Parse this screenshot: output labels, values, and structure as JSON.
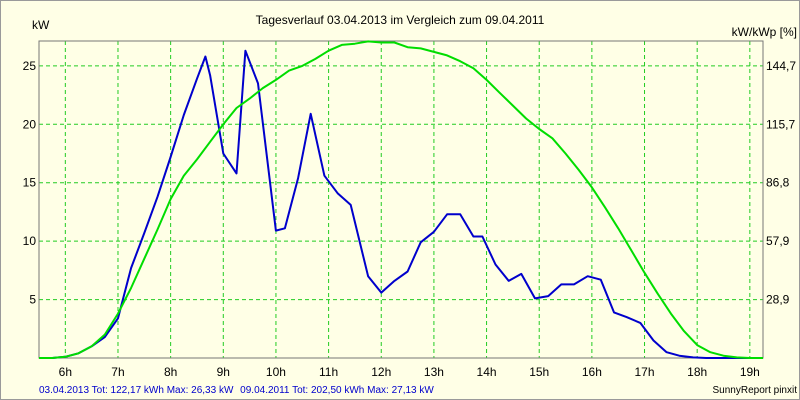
{
  "chart_data": {
    "type": "line",
    "title": "Tagesverlauf 03.04.2013 im Vergleich zum 09.04.2011",
    "ylabel": "kW",
    "y2label": "kW/kWp [%]",
    "ylim": [
      0,
      27.13
    ],
    "yticks": [
      5,
      10,
      15,
      20,
      25
    ],
    "y2ticks": [
      "28,9",
      "57,9",
      "86,8",
      "115,7",
      "144,7"
    ],
    "xlim": [
      5.5,
      19.25
    ],
    "xticks": [
      "6h",
      "7h",
      "8h",
      "9h",
      "10h",
      "11h",
      "12h",
      "13h",
      "14h",
      "15h",
      "16h",
      "17h",
      "18h",
      "19h"
    ],
    "grid": true,
    "series": [
      {
        "name": "03.04.2013",
        "color": "#0000cc",
        "x": [
          5.5,
          5.75,
          6.0,
          6.25,
          6.5,
          6.75,
          7.0,
          7.25,
          7.5,
          7.75,
          8.0,
          8.25,
          8.5,
          8.66,
          8.75,
          9.0,
          9.25,
          9.42,
          9.66,
          10.0,
          10.17,
          10.42,
          10.66,
          10.92,
          11.17,
          11.42,
          11.75,
          12.0,
          12.25,
          12.5,
          12.75,
          13.0,
          13.25,
          13.5,
          13.75,
          13.92,
          14.17,
          14.42,
          14.66,
          14.92,
          15.17,
          15.42,
          15.66,
          15.92,
          16.17,
          16.42,
          16.66,
          16.92,
          17.17,
          17.42,
          17.66,
          17.92,
          18.17,
          18.42,
          18.66,
          19.25
        ],
        "values": [
          0,
          0,
          0.1,
          0.4,
          1.0,
          1.8,
          3.4,
          7.7,
          10.7,
          13.8,
          17.2,
          20.8,
          23.9,
          25.8,
          24.2,
          17.5,
          15.8,
          26.3,
          23.5,
          10.9,
          11.1,
          15.4,
          20.9,
          15.6,
          14.1,
          13.1,
          7.0,
          5.6,
          6.6,
          7.4,
          9.9,
          10.8,
          12.3,
          12.3,
          10.4,
          10.4,
          8.0,
          6.6,
          7.2,
          5.1,
          5.3,
          6.3,
          6.3,
          7.0,
          6.7,
          3.9,
          3.5,
          3.0,
          1.5,
          0.5,
          0.2,
          0.05,
          0,
          0,
          0,
          0
        ]
      },
      {
        "name": "09.04.2011",
        "color": "#00dd00",
        "x": [
          5.5,
          5.75,
          6.0,
          6.25,
          6.5,
          6.75,
          7.0,
          7.25,
          7.5,
          7.75,
          8.0,
          8.25,
          8.5,
          8.75,
          9.0,
          9.25,
          9.5,
          9.75,
          10.0,
          10.25,
          10.5,
          10.75,
          11.0,
          11.25,
          11.5,
          11.75,
          12.0,
          12.25,
          12.5,
          12.75,
          13.0,
          13.25,
          13.5,
          13.75,
          14.0,
          14.25,
          14.5,
          14.75,
          15.0,
          15.25,
          15.5,
          15.75,
          16.0,
          16.25,
          16.5,
          16.75,
          17.0,
          17.25,
          17.5,
          17.75,
          18.0,
          18.25,
          18.5,
          18.75,
          19.0,
          19.25
        ],
        "values": [
          0,
          0,
          0.1,
          0.4,
          1.0,
          2.0,
          3.8,
          6.0,
          8.5,
          11.0,
          13.6,
          15.6,
          17.0,
          18.5,
          20.0,
          21.4,
          22.2,
          23.1,
          23.8,
          24.6,
          25.0,
          25.6,
          26.3,
          26.8,
          26.9,
          27.1,
          27.0,
          27.0,
          26.6,
          26.5,
          26.2,
          25.9,
          25.4,
          24.8,
          23.8,
          22.7,
          21.6,
          20.5,
          19.6,
          18.8,
          17.5,
          16.1,
          14.6,
          12.9,
          11.1,
          9.2,
          7.3,
          5.5,
          3.8,
          2.3,
          1.1,
          0.5,
          0.2,
          0.05,
          0,
          0
        ]
      }
    ]
  },
  "footer": {
    "series1_date": "03.04.2013",
    "series1_stats": " Tot: 122,17 kWh Max: 26,33 kW",
    "series2_date": "09.04.2011",
    "series2_stats": " Tot: 202,50 kWh Max: 27,13 kW",
    "brand": "SunnyReport pinxit"
  }
}
